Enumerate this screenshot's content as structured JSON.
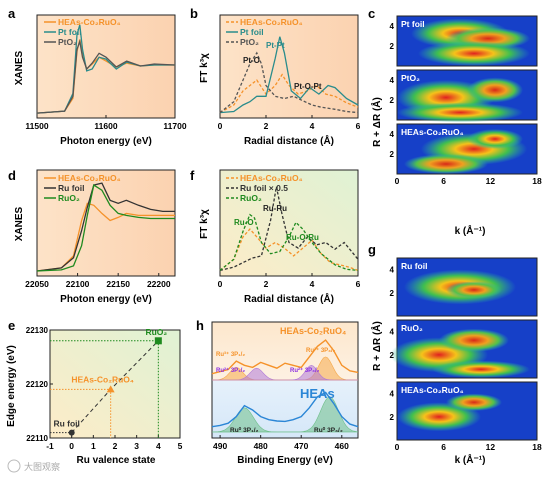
{
  "panels": {
    "a": {
      "letter": "a",
      "ylabel": "XANES",
      "xlabel": "Photon energy (eV)",
      "xticks": [
        "11500",
        "11600",
        "11700"
      ],
      "legend": [
        "HEAs-Co₂RuO₄",
        "Pt foil",
        "PtO₂"
      ]
    },
    "b": {
      "letter": "b",
      "ylabel": "FT k³χ",
      "xlabel": "Radial distance (Å)",
      "xticks": [
        "0",
        "2",
        "4",
        "6"
      ],
      "legend": [
        "HEAs-Co₂RuO₄",
        "Pt foil",
        "PtO₂"
      ],
      "annotations": [
        "Pt-O",
        "Pt-Pt",
        "Pt-O-Pt"
      ]
    },
    "c": {
      "letter": "c",
      "ylabel": "R + ΔR (Å)",
      "xlabel": "k (Å⁻¹)",
      "xticks": [
        "0",
        "6",
        "12",
        "18"
      ],
      "yticks": [
        "2",
        "4"
      ],
      "maps": [
        "Pt foil",
        "PtO₂",
        "HEAs-Co₂RuO₄"
      ]
    },
    "d": {
      "letter": "d",
      "ylabel": "XANES",
      "xlabel": "Photon energy (eV)",
      "xticks": [
        "22050",
        "22100",
        "22150",
        "22200"
      ],
      "legend": [
        "HEAs-Co₂RuO₄",
        "Ru foil",
        "RuO₂"
      ]
    },
    "e": {
      "letter": "e",
      "ylabel": "Edge energy (eV)",
      "xlabel": "Ru valence state",
      "xticks": [
        "-1",
        "0",
        "1",
        "2",
        "3",
        "4",
        "5"
      ],
      "yticks": [
        "22110",
        "22120",
        "22130"
      ],
      "points": [
        "Ru foil",
        "HEAs-Co₂RuO₄",
        "RuO₂"
      ]
    },
    "f": {
      "letter": "f",
      "ylabel": "FT k³χ",
      "xlabel": "Radial distance (Å)",
      "xticks": [
        "0",
        "2",
        "4",
        "6"
      ],
      "legend": [
        "HEAs-Co₂RuO₄",
        "Ru foil × 0.5",
        "RuO₂"
      ],
      "annotations": [
        "Ru-O",
        "Ru-Ru",
        "Ru-O-Ru"
      ]
    },
    "g": {
      "letter": "g",
      "ylabel": "R + ΔR (Å)",
      "xlabel": "k (Å⁻¹)",
      "xticks": [
        "0",
        "6",
        "12",
        "18"
      ],
      "yticks": [
        "2",
        "4"
      ],
      "maps": [
        "Ru foil",
        "RuO₂",
        "HEAs-Co₂RuO₄"
      ]
    },
    "h": {
      "letter": "h",
      "xlabel": "Binding Energy (eV)",
      "xticks": [
        "490",
        "480",
        "470",
        "460"
      ],
      "top_title": "HEAs-Co₂RuO₄",
      "bottom_title": "HEAs",
      "top_labels": [
        "Ru³⁺ 3P₁/₂",
        "Ru²⁺ 3P₁/₂",
        "Ru³⁺ 3P₃/₂",
        "Ru²⁺ 3P₃/₂"
      ],
      "bottom_labels": [
        "Ru⁰ 3P₁/₂",
        "Ru⁰ 3P₃/₂"
      ]
    }
  },
  "colors": {
    "hea": "#f5922a",
    "pt": "#2a8c8c",
    "pto2": "#555555",
    "ru": "#333333",
    "ruo2": "#1f8a1f",
    "blue": "#2b86d6"
  },
  "watermark": "大图观察",
  "chart_data": [
    {
      "panel": "a",
      "type": "line",
      "xlim": [
        11500,
        11700
      ],
      "series": [
        {
          "name": "HEAs-Co₂RuO₄",
          "x": [
            11500,
            11540,
            11552,
            11558,
            11562,
            11566,
            11572,
            11580,
            11590,
            11600,
            11615,
            11630,
            11650,
            11670,
            11700
          ],
          "y": [
            0.05,
            0.07,
            0.2,
            0.68,
            0.8,
            0.65,
            0.5,
            0.55,
            0.62,
            0.58,
            0.52,
            0.56,
            0.53,
            0.54,
            0.54
          ]
        },
        {
          "name": "Pt foil",
          "x": [
            11500,
            11540,
            11552,
            11558,
            11562,
            11566,
            11572,
            11580,
            11590,
            11600,
            11615,
            11630,
            11650,
            11670,
            11700
          ],
          "y": [
            0.05,
            0.07,
            0.25,
            0.85,
            0.95,
            0.7,
            0.48,
            0.5,
            0.62,
            0.6,
            0.5,
            0.57,
            0.53,
            0.54,
            0.54
          ]
        },
        {
          "name": "PtO₂",
          "x": [
            11500,
            11540,
            11552,
            11558,
            11562,
            11566,
            11572,
            11580,
            11590,
            11600,
            11615,
            11630,
            11650,
            11670,
            11700
          ],
          "y": [
            0.05,
            0.07,
            0.22,
            0.7,
            0.78,
            0.62,
            0.5,
            0.56,
            0.66,
            0.62,
            0.52,
            0.58,
            0.53,
            0.55,
            0.54
          ]
        }
      ]
    },
    {
      "panel": "b",
      "type": "line",
      "xlim": [
        0,
        6
      ],
      "series": [
        {
          "name": "HEAs-Co₂RuO₄",
          "x": [
            0,
            0.6,
            1.0,
            1.3,
            1.6,
            2.0,
            2.4,
            2.7,
            3.0,
            3.4,
            3.8,
            4.2,
            4.6,
            5.0,
            5.5,
            6.0
          ],
          "y": [
            0.05,
            0.12,
            0.25,
            0.3,
            0.35,
            0.22,
            0.3,
            0.4,
            0.3,
            0.22,
            0.25,
            0.3,
            0.22,
            0.2,
            0.14,
            0.1
          ]
        },
        {
          "name": "Pt foil",
          "x": [
            0,
            0.6,
            1.0,
            1.3,
            1.6,
            2.0,
            2.4,
            2.6,
            2.8,
            3.1,
            3.5,
            3.9,
            4.3,
            4.7,
            5.0,
            5.5,
            6.0
          ],
          "y": [
            0.05,
            0.06,
            0.12,
            0.15,
            0.2,
            0.2,
            0.55,
            0.75,
            0.6,
            0.25,
            0.18,
            0.28,
            0.22,
            0.3,
            0.28,
            0.18,
            0.12
          ]
        },
        {
          "name": "PtO₂",
          "x": [
            0,
            0.6,
            1.0,
            1.3,
            1.6,
            1.8,
            2.0,
            2.4,
            2.8,
            3.2,
            3.6,
            4.0,
            4.4,
            5.0,
            5.5,
            6.0
          ],
          "y": [
            0.05,
            0.15,
            0.35,
            0.5,
            0.6,
            0.5,
            0.3,
            0.2,
            0.18,
            0.2,
            0.16,
            0.12,
            0.1,
            0.08,
            0.06,
            0.05
          ]
        }
      ]
    },
    {
      "panel": "d",
      "type": "line",
      "xlim": [
        22050,
        22220
      ],
      "series": [
        {
          "name": "HEAs-Co₂RuO₄",
          "x": [
            22050,
            22080,
            22095,
            22105,
            22112,
            22120,
            22130,
            22140,
            22150,
            22160,
            22175,
            22190,
            22205,
            22220
          ],
          "y": [
            0.05,
            0.08,
            0.2,
            0.55,
            0.72,
            0.7,
            0.62,
            0.55,
            0.58,
            0.62,
            0.6,
            0.6,
            0.6,
            0.6
          ]
        },
        {
          "name": "Ru foil",
          "x": [
            22050,
            22080,
            22095,
            22105,
            22112,
            22120,
            22130,
            22140,
            22150,
            22160,
            22175,
            22190,
            22205,
            22220
          ],
          "y": [
            0.05,
            0.08,
            0.18,
            0.45,
            0.68,
            0.9,
            0.92,
            0.75,
            0.72,
            0.75,
            0.7,
            0.66,
            0.64,
            0.64
          ]
        },
        {
          "name": "RuO₂",
          "x": [
            22050,
            22080,
            22095,
            22105,
            22112,
            22120,
            22130,
            22140,
            22150,
            22160,
            22175,
            22190,
            22205,
            22220
          ],
          "y": [
            0.05,
            0.06,
            0.1,
            0.3,
            0.6,
            0.9,
            0.85,
            0.7,
            0.62,
            0.6,
            0.58,
            0.57,
            0.57,
            0.57
          ]
        }
      ]
    },
    {
      "panel": "e",
      "type": "scatter",
      "xlim": [
        -1,
        5
      ],
      "ylim": [
        22110,
        22130
      ],
      "points": [
        {
          "name": "Ru foil",
          "x": 0,
          "y": 22111
        },
        {
          "name": "HEAs-Co₂RuO₄",
          "x": 1.8,
          "y": 22119
        },
        {
          "name": "RuO₂",
          "x": 4,
          "y": 22128
        }
      ]
    },
    {
      "panel": "f",
      "type": "line",
      "xlim": [
        0,
        6
      ],
      "series": [
        {
          "name": "HEAs-Co₂RuO₄",
          "x": [
            0,
            0.6,
            1.0,
            1.3,
            1.6,
            2.0,
            2.4,
            2.8,
            3.2,
            3.6,
            4.0,
            4.4,
            4.8,
            5.2,
            5.6,
            6.0
          ],
          "y": [
            0.05,
            0.15,
            0.35,
            0.42,
            0.35,
            0.25,
            0.3,
            0.25,
            0.18,
            0.25,
            0.32,
            0.2,
            0.12,
            0.1,
            0.08,
            0.05
          ]
        },
        {
          "name": "Ru foil × 0.5",
          "x": [
            0,
            0.6,
            1.0,
            1.4,
            1.8,
            2.2,
            2.45,
            2.7,
            3.0,
            3.4,
            3.8,
            4.2,
            4.6,
            5.0,
            5.4,
            5.8,
            6.0
          ],
          "y": [
            0.05,
            0.08,
            0.12,
            0.16,
            0.18,
            0.5,
            0.8,
            0.55,
            0.3,
            0.25,
            0.35,
            0.28,
            0.3,
            0.24,
            0.3,
            0.2,
            0.15
          ]
        },
        {
          "name": "RuO₂",
          "x": [
            0,
            0.6,
            1.0,
            1.3,
            1.5,
            1.8,
            2.2,
            2.6,
            3.0,
            3.3,
            3.6,
            4.0,
            4.4,
            5.0,
            5.5,
            6.0
          ],
          "y": [
            0.05,
            0.15,
            0.4,
            0.55,
            0.52,
            0.3,
            0.2,
            0.22,
            0.35,
            0.48,
            0.42,
            0.3,
            0.2,
            0.1,
            0.06,
            0.05
          ]
        }
      ]
    },
    {
      "panel": "h",
      "type": "line",
      "xlim": [
        492,
        456
      ],
      "series": [
        {
          "name": "HEAs-Co₂RuO₄",
          "x": [
            492,
            488,
            486,
            484,
            482,
            480,
            478,
            476,
            474,
            472,
            470,
            468,
            466,
            464,
            462,
            460,
            458,
            456
          ],
          "y": [
            0.15,
            0.25,
            0.45,
            0.35,
            0.3,
            0.42,
            0.35,
            0.28,
            0.4,
            0.35,
            0.3,
            0.55,
            0.8,
            0.95,
            0.7,
            0.35,
            0.22,
            0.18
          ]
        },
        {
          "name": "HEAs",
          "x": [
            492,
            490,
            488,
            486,
            484,
            482,
            480,
            478,
            476,
            474,
            472,
            470,
            468,
            466,
            464,
            462,
            460,
            458,
            456
          ],
          "y": [
            0.12,
            0.15,
            0.2,
            0.35,
            0.6,
            0.5,
            0.35,
            0.28,
            0.25,
            0.24,
            0.28,
            0.35,
            0.55,
            0.8,
            0.9,
            0.65,
            0.35,
            0.18,
            0.12
          ]
        }
      ]
    }
  ]
}
